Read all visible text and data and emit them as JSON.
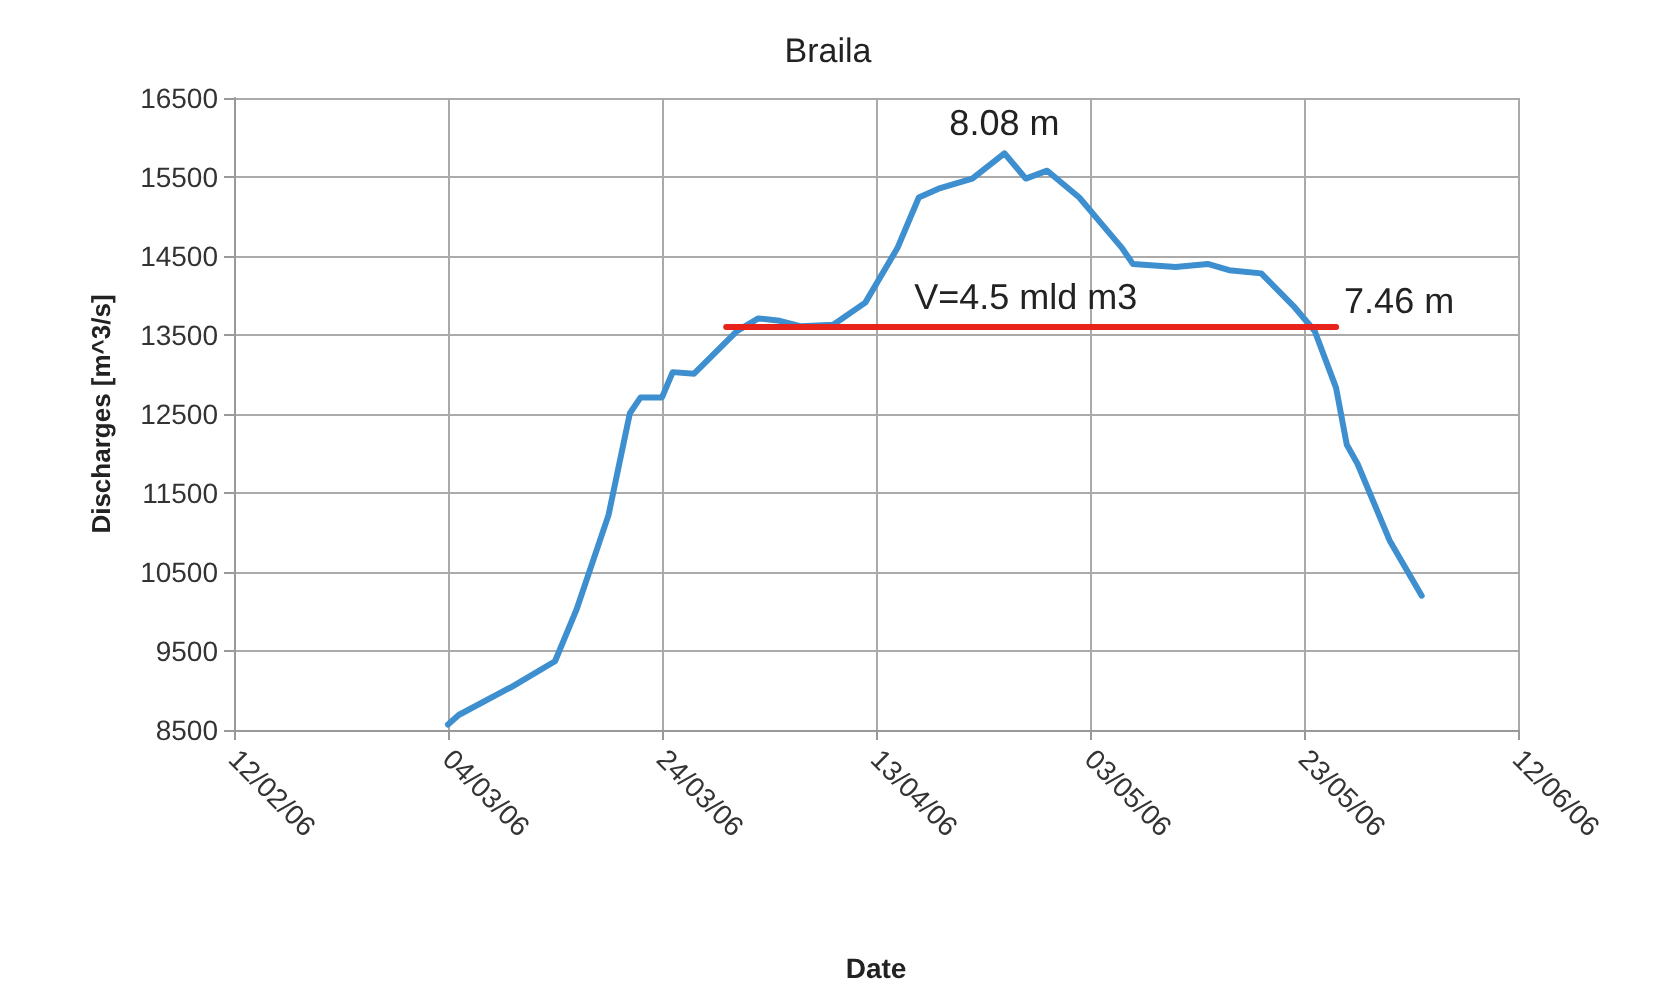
{
  "chart_data": {
    "type": "line",
    "title": "Braila",
    "xlabel": "Date",
    "ylabel": "Discharges [m^3/s]",
    "xlim": [
      "2006-02-12",
      "2006-06-12"
    ],
    "xticks": [
      {
        "value": "2006-02-12",
        "label": "12/02/06"
      },
      {
        "value": "2006-03-04",
        "label": "04/03/06"
      },
      {
        "value": "2006-03-24",
        "label": "24/03/06"
      },
      {
        "value": "2006-04-13",
        "label": "13/04/06"
      },
      {
        "value": "2006-05-03",
        "label": "03/05/06"
      },
      {
        "value": "2006-05-23",
        "label": "23/05/06"
      },
      {
        "value": "2006-06-12",
        "label": "12/06/06"
      }
    ],
    "ylim": [
      8500,
      16500
    ],
    "yticks": [
      8500,
      9500,
      10500,
      11500,
      12500,
      13500,
      14500,
      15500,
      16500
    ],
    "grid": true,
    "marker": "none",
    "line_style": "solid",
    "series": [
      {
        "color": "#3d8fcf",
        "x": [
          "2006-03-04",
          "2006-03-05",
          "2006-03-10",
          "2006-03-14",
          "2006-03-16",
          "2006-03-19",
          "2006-03-21",
          "2006-03-22",
          "2006-03-24",
          "2006-03-25",
          "2006-03-27",
          "2006-03-31",
          "2006-04-02",
          "2006-04-04",
          "2006-04-06",
          "2006-04-09",
          "2006-04-12",
          "2006-04-15",
          "2006-04-17",
          "2006-04-19",
          "2006-04-22",
          "2006-04-25",
          "2006-04-27",
          "2006-04-29",
          "2006-05-02",
          "2006-05-04",
          "2006-05-06",
          "2006-05-07",
          "2006-05-11",
          "2006-05-14",
          "2006-05-16",
          "2006-05-19",
          "2006-05-22",
          "2006-05-24",
          "2006-05-26",
          "2006-05-27",
          "2006-05-28",
          "2006-05-31",
          "2006-06-03"
        ],
        "values": [
          8570,
          8690,
          9050,
          9370,
          10020,
          11220,
          12510,
          12710,
          12710,
          13030,
          13010,
          13550,
          13710,
          13680,
          13610,
          13630,
          13910,
          14600,
          15240,
          15360,
          15480,
          15800,
          15480,
          15580,
          15240,
          14920,
          14600,
          14400,
          14360,
          14400,
          14320,
          14280,
          13870,
          13550,
          12830,
          12110,
          11870,
          10900,
          10200
        ]
      },
      {
        "color": "#e8231c",
        "x": [
          "2006-03-30",
          "2006-05-26"
        ],
        "values": [
          13600,
          13600
        ]
      }
    ],
    "annotations": [
      {
        "text": "8.08 m",
        "x": "2006-04-25",
        "y": 15800
      },
      {
        "text": "V=4.5 mld m3",
        "x": "2006-04-27",
        "y": 13600
      },
      {
        "text": "7.46 m",
        "x": "2006-05-26",
        "y": 13600
      }
    ]
  }
}
